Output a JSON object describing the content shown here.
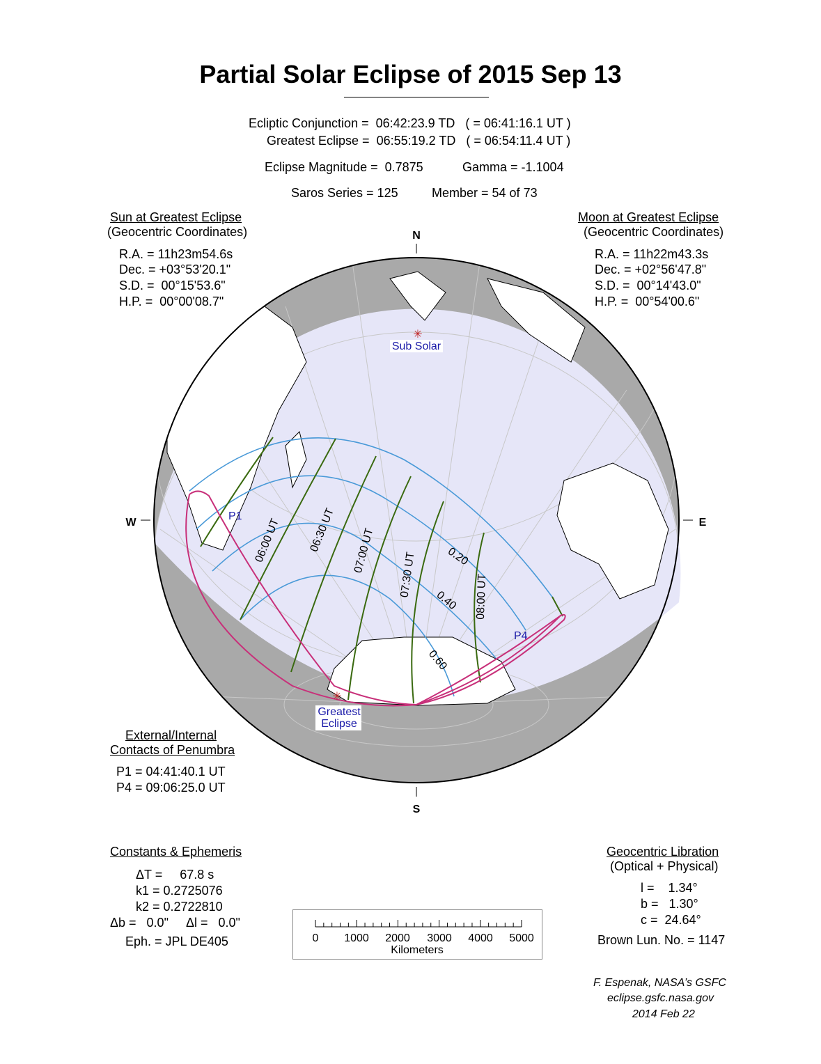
{
  "title": "Partial Solar Eclipse of  2015 Sep 13",
  "header": {
    "conjunction": "Ecliptic Conjunction =  06:42:23.9 TD   ( = 06:41:16.1 UT )",
    "greatest": "Greatest Eclipse =  06:55:19.2 TD   ( = 06:54:11.4 UT )",
    "magnitude": "Eclipse Magnitude =  0.7875",
    "gamma": "Gamma = -1.1004",
    "saros": "Saros Series = 125",
    "member": "Member = 54 of 73"
  },
  "sun": {
    "heading": "Sun at Greatest Eclipse",
    "sub": "(Geocentric Coordinates)",
    "lines": [
      "R.A. = 11h23m54.6s",
      "Dec. = +03°53'20.1\"",
      "S.D. =  00°15'53.6\"",
      "H.P. =  00°00'08.7\""
    ]
  },
  "moon": {
    "heading": "Moon at Greatest Eclipse",
    "sub": "(Geocentric Coordinates)",
    "lines": [
      "R.A. = 11h22m43.3s",
      "Dec. = +02°56'47.8\"",
      "S.D. =  00°14'43.0\"",
      "H.P. =  00°54'00.6\""
    ]
  },
  "contacts": {
    "heading1": "External/Internal",
    "heading2": "Contacts of Penumbra",
    "lines": [
      "P1 = 04:41:40.1 UT",
      "P4 = 09:06:25.0 UT"
    ]
  },
  "constants": {
    "heading": "Constants & Ephemeris",
    "lines": [
      "ΔT =     67.8 s",
      "k1 = 0.2725076",
      "k2 = 0.2722810",
      "Δb =   0.0\"     Δl =   0.0\"",
      "Eph. = JPL DE405"
    ]
  },
  "libration": {
    "heading": "Geocentric Libration",
    "sub": "(Optical + Physical)",
    "lines": [
      "l =    1.34°",
      "b =   1.30°",
      "c =  24.64°",
      "Brown Lun. No. = 1147"
    ]
  },
  "scale": {
    "ticks": [
      "0",
      "1000",
      "2000",
      "3000",
      "4000",
      "5000"
    ],
    "unit": "Kilometers"
  },
  "credit": [
    "F. Espenak, NASA’s GSFC",
    "eclipse.gsfc.nasa.gov",
    "2014 Feb 22"
  ],
  "map": {
    "compass": {
      "n": "N",
      "s": "S",
      "e": "E",
      "w": "W"
    },
    "sub_solar": "Sub Solar",
    "greatest_eclipse": [
      "Greatest",
      "Eclipse"
    ],
    "contact_labels": [
      "P1",
      "P4"
    ],
    "time_labels": [
      "06:00 UT",
      "06:30 UT",
      "07:00 UT",
      "07:30 UT",
      "08:00 UT"
    ],
    "magnitude_labels": [
      "0.20",
      "0.40",
      "0.60"
    ],
    "colors": {
      "day": "#e6e6f8",
      "night": "#a9a9a9",
      "magnitude": "#4a9ad8",
      "time": "#3a6a10",
      "contact": "#c8307a",
      "label": "#1a1aa8",
      "marker": "#c02020"
    }
  }
}
